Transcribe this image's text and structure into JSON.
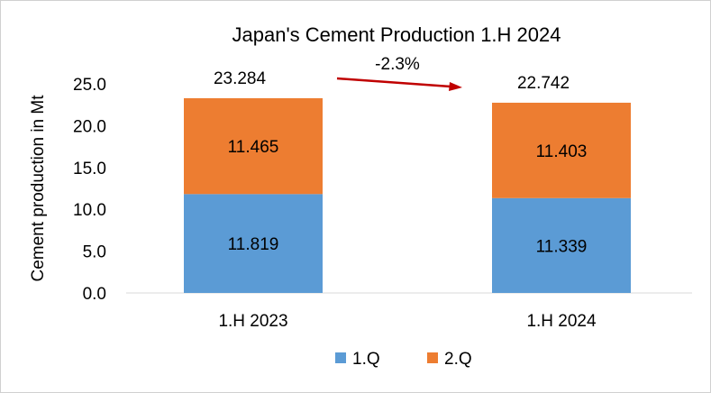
{
  "chart_data": {
    "type": "bar",
    "stacked": true,
    "title": "Japan's Cement Production 1.H 2024",
    "xlabel": "",
    "ylabel": "Cement production in Mt",
    "ylim": [
      0,
      25
    ],
    "yticks": [
      "0.0",
      "5.0",
      "10.0",
      "15.0",
      "20.0",
      "25.0"
    ],
    "categories": [
      "1.H 2023",
      "1.H 2024"
    ],
    "series": [
      {
        "name": "1.Q",
        "color": "#5b9bd5",
        "values": [
          11.819,
          11.339
        ],
        "labels": [
          "11.819",
          "11.339"
        ]
      },
      {
        "name": "2.Q",
        "color": "#ed7d31",
        "values": [
          11.465,
          11.403
        ],
        "labels": [
          "11.465",
          "11.403"
        ]
      }
    ],
    "totals": [
      "23.284",
      "22.742"
    ],
    "annotation": {
      "text": "-2.3%",
      "arrow_color": "#c00000"
    },
    "grid": false,
    "legend": "bottom"
  }
}
